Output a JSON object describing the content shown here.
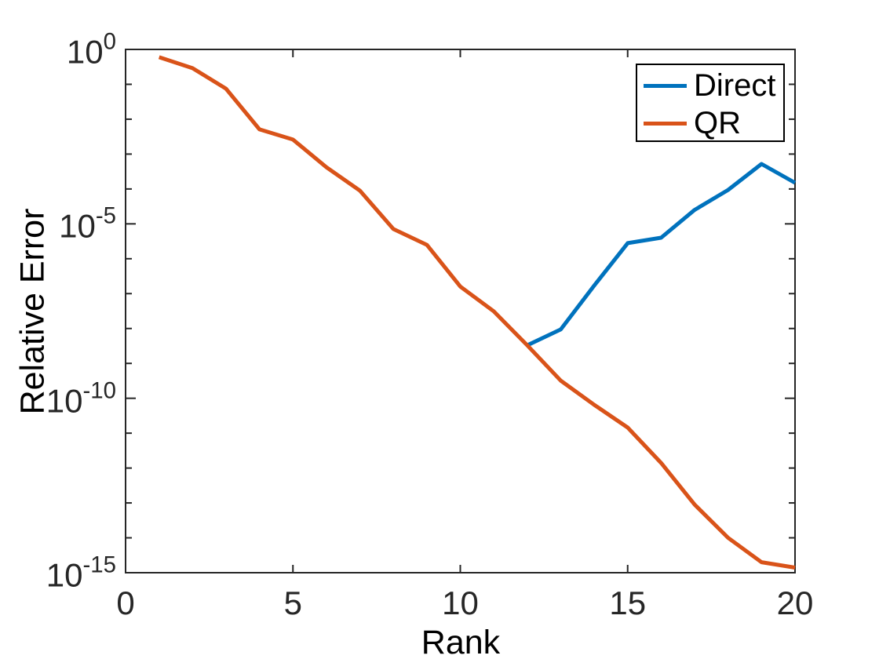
{
  "figure": {
    "background": "#ffffff",
    "axis_color": "#262626",
    "text_color": "#000000"
  },
  "legend": {
    "position": "northeast",
    "entries": [
      {
        "label": "Direct",
        "color": "#0072BD"
      },
      {
        "label": "QR",
        "color": "#D95319"
      }
    ]
  },
  "chart_data": {
    "type": "line",
    "title": "",
    "xlabel": "Rank",
    "ylabel": "Relative Error",
    "grid": false,
    "legend_position": "northeast",
    "xlim": [
      0,
      20
    ],
    "yscale": "log",
    "ylim_exponents": [
      -15,
      0
    ],
    "x_ticks": [
      0,
      5,
      10,
      15,
      20
    ],
    "x_tick_labels": [
      "0",
      "5",
      "10",
      "15",
      "20"
    ],
    "y_major_tick_exponents": [
      0,
      -5,
      -10,
      -15
    ],
    "y_tick_base": "10",
    "y_minor_ticks_every_decade": true,
    "series": [
      {
        "name": "Direct",
        "color": "#0072BD",
        "x": [
          12,
          13,
          14,
          15,
          16,
          17,
          18,
          19,
          20
        ],
        "y": [
          3.3e-09,
          9.4e-09,
          1.7e-07,
          2.8e-06,
          4e-06,
          2.5e-05,
          9.4e-05,
          0.00052,
          0.00015
        ]
      },
      {
        "name": "QR",
        "color": "#D95319",
        "x": [
          1,
          2,
          3,
          4,
          5,
          6,
          7,
          8,
          9,
          10,
          11,
          12,
          13,
          14,
          15,
          16,
          17,
          18,
          19,
          20
        ],
        "y": [
          0.6,
          0.29,
          0.075,
          0.0051,
          0.0026,
          0.00042,
          9e-05,
          7.1e-06,
          2.5e-06,
          1.6e-07,
          3.1e-08,
          3.3e-09,
          3.2e-10,
          6.5e-11,
          1.45e-11,
          1.4e-12,
          9e-14,
          1e-14,
          2e-15,
          1.4e-15
        ]
      }
    ]
  }
}
